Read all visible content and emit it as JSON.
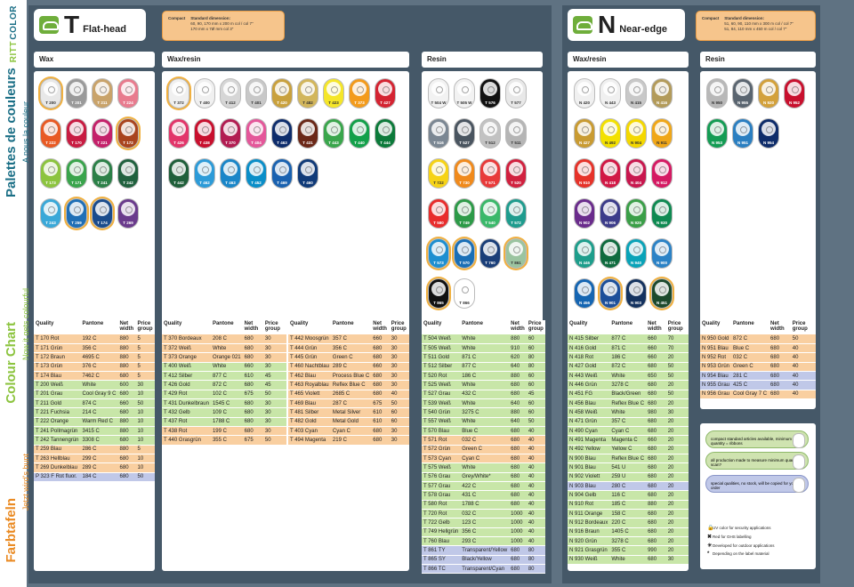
{
  "sidebar": {
    "logo1": "COLOR",
    "logo2": "RITT",
    "de": "Farbtafeln",
    "de_sub": "Jetzt wird's bunt",
    "en": "Colour Chart",
    "en_sub": "Now it gets colourful",
    "fr": "Palettes de couleurs",
    "fr_sub": "A nous la couleur"
  },
  "t": {
    "letter": "T",
    "title": "Flat-head",
    "note_label": "Compact",
    "note_text1": "Standard dimension:",
    "note_text2": "60, 90, 170 mm x 200 m col / col 7\"",
    "note_text3": "170 mm x 7Ø mm col 3\""
  },
  "n": {
    "letter": "N",
    "title": "Near-edge",
    "note_label": "Compact",
    "note_text1": "Standard dimension:",
    "note_text2": "51, 60, 90, 110 mm x 300 m col / col 7\"",
    "note_text3": "51, 84, 110 mm x 450 m col / col 7\""
  },
  "sections": {
    "wax": "Wax",
    "waxresin": "Wax/resin",
    "resin": "Resin",
    "n_waxresin": "Wax/resin",
    "n_resin": "Resin"
  },
  "headers": [
    "Quality",
    "Pantone",
    "Net width",
    "Price group"
  ],
  "colors": {
    "green": "#c8e6a8",
    "orange": "#f9cfa0",
    "blue": "#c0c8e8",
    "white": "#ffffff"
  },
  "rolls": {
    "wax": [
      [
        "T 200",
        "#e8e8e8",
        1
      ],
      [
        "T 201",
        "#9a9a9a",
        0
      ],
      [
        "T 211",
        "#c9a36a",
        0
      ],
      [
        "T 224",
        "#e87b8e",
        0
      ],
      [
        "T 222",
        "#e85a24",
        0
      ],
      [
        "T 170",
        "#c81c42",
        0
      ],
      [
        "T 221",
        "#c4216a",
        0
      ],
      [
        "T 172",
        "#a9441e",
        1
      ],
      [
        "T 173",
        "#8cc43f",
        0
      ],
      [
        "T 171",
        "#3aa44c",
        0
      ],
      [
        "T 241",
        "#2c8048",
        0
      ],
      [
        "T 242",
        "#20613e",
        0
      ],
      [
        "T 243",
        "#3aa8d8",
        0
      ],
      [
        "T 259",
        "#1f6fb6",
        1
      ],
      [
        "T 174",
        "#1b4c8c",
        1
      ],
      [
        "T 269",
        "#6a3b8c",
        0
      ]
    ],
    "waxresin": [
      [
        "T 372",
        "#f0f0f0",
        1
      ],
      [
        "T 400",
        "#f0f0f0",
        0
      ],
      [
        "T 412",
        "#d6d6d6",
        0
      ],
      [
        "T 401",
        "#c8c8c8",
        0
      ],
      [
        "T 420",
        "#c9a13d",
        0
      ],
      [
        "T 482",
        "#d2b65c",
        0
      ],
      [
        "T 423",
        "#f5e629",
        0
      ],
      [
        "T 373",
        "#f39b1c",
        0
      ],
      [
        "T 427",
        "#d42432",
        0
      ],
      [
        "T 426",
        "#e2356a",
        0
      ],
      [
        "T 438",
        "#c8102e",
        0
      ],
      [
        "T 370",
        "#b21d52",
        0
      ],
      [
        "T 404",
        "#e4579a",
        0
      ],
      [
        "T 463",
        "#0e2d6c",
        0
      ],
      [
        "T 431",
        "#6b2818",
        0
      ],
      [
        "T 443",
        "#3aa64c",
        0
      ],
      [
        "T 440",
        "#13a04a",
        0
      ],
      [
        "T 444",
        "#0c7a3a",
        0
      ],
      [
        "T 442",
        "#1f5f3a",
        0
      ],
      [
        "T 462",
        "#2d9bd8",
        0
      ],
      [
        "T 463",
        "#1a86c8",
        0
      ],
      [
        "T 452",
        "#0a8ec8",
        0
      ],
      [
        "T 469",
        "#1a62b0",
        0
      ],
      [
        "T 460",
        "#103a78",
        0
      ]
    ],
    "resin": [
      [
        "T 504 W",
        "#f2f2f2",
        0
      ],
      [
        "T 505 W",
        "#f2f2f2",
        0
      ],
      [
        "T 576",
        "#111111",
        0
      ],
      [
        "T 577",
        "#e8e8e8",
        0
      ],
      [
        "T 516",
        "#7b8793",
        0
      ],
      [
        "T 527",
        "#4a5560",
        0
      ],
      [
        "T 512",
        "#c2c2c2",
        0
      ],
      [
        "T 511",
        "#b5b5b5",
        0
      ],
      [
        "T 722",
        "#f6d316",
        0
      ],
      [
        "T 730",
        "#f08a1c",
        0
      ],
      [
        "T 571",
        "#e83a3a",
        0
      ],
      [
        "T 520",
        "#d1213f",
        0
      ],
      [
        "T 580",
        "#e82d2d",
        0
      ],
      [
        "T 749",
        "#2d9a48",
        0
      ],
      [
        "T 540",
        "#3ab86a",
        0
      ],
      [
        "T 572",
        "#1f9c8e",
        0
      ],
      [
        "T 573",
        "#1e8fd0",
        1
      ],
      [
        "T 570",
        "#1a6fb6",
        1
      ],
      [
        "T 760",
        "#1a3e78",
        0
      ],
      [
        "T 861",
        "#9bc4a0",
        1
      ],
      [
        "T 865",
        "#111111",
        1
      ],
      [
        "T 866",
        "#ffffff",
        0
      ]
    ],
    "n_waxresin": [
      [
        "N 420",
        "#f0f0f0",
        0
      ],
      [
        "N 443",
        "#f0f0f0",
        0
      ],
      [
        "N 415",
        "#c8c8c8",
        0
      ],
      [
        "N 416",
        "#b39b5a",
        0
      ],
      [
        "N 427",
        "#c99b32",
        0
      ],
      [
        "N 492",
        "#f3e100",
        0
      ],
      [
        "N 904",
        "#f4d800",
        0
      ],
      [
        "N 911",
        "#f0a718",
        0
      ],
      [
        "N 910",
        "#e6332a",
        0
      ],
      [
        "N 418",
        "#d11845",
        0
      ],
      [
        "N 404",
        "#c8174e",
        0
      ],
      [
        "N 912",
        "#d51a63",
        0
      ],
      [
        "N 902",
        "#6a2c8c",
        0
      ],
      [
        "N 906",
        "#3c3c8a",
        0
      ],
      [
        "N 920",
        "#3b9f48",
        0
      ],
      [
        "N 930",
        "#0f8a52",
        0
      ],
      [
        "N 446",
        "#1e9e8c",
        0
      ],
      [
        "N 471",
        "#0f6b3e",
        0
      ],
      [
        "N 940",
        "#0aa3b8",
        0
      ],
      [
        "N 900",
        "#2b82c6",
        0
      ],
      [
        "N 456",
        "#1565b2",
        0
      ],
      [
        "N 901",
        "#1d4f9a",
        1
      ],
      [
        "N 903",
        "#14325f",
        0
      ],
      [
        "N 451",
        "#1c4a2c",
        1
      ]
    ],
    "n_resin": [
      [
        "N 950",
        "#b8b8b8",
        0
      ],
      [
        "N 955",
        "#5a6570",
        0
      ],
      [
        "N 920",
        "#d3a13b",
        0
      ],
      [
        "N 952",
        "#c8102e",
        0
      ],
      [
        "N 953",
        "#149c54",
        0
      ],
      [
        "N 951",
        "#2b7fc1",
        0
      ],
      [
        "N 954",
        "#0e2c6a",
        0
      ]
    ]
  },
  "tables": {
    "wax": [
      [
        "T 170 Rot",
        "192 C",
        "880",
        "5",
        "orange"
      ],
      [
        "T 171 Grün",
        "356 C",
        "880",
        "5",
        "orange"
      ],
      [
        "T 172 Braun",
        "4695 C",
        "880",
        "5",
        "orange"
      ],
      [
        "T 173 Grün",
        "376 C",
        "880",
        "5",
        "orange"
      ],
      [
        "T 174 Blau",
        "7462 C",
        "680",
        "5",
        "orange"
      ],
      [
        "T 200 Weiß",
        "White",
        "600",
        "30",
        "green"
      ],
      [
        "T 201 Grau",
        "Cool Gray 9 C",
        "680",
        "10",
        "green"
      ],
      [
        "T 211 Gold",
        "874 C",
        "660",
        "50",
        "green"
      ],
      [
        "T 221 Fuchsia",
        "214 C",
        "680",
        "10",
        "green"
      ],
      [
        "T 222 Orange",
        "Warm Red C",
        "880",
        "10",
        "green"
      ],
      [
        "T 241 Pollmagrün",
        "3415 C",
        "880",
        "10",
        "green"
      ],
      [
        "T 242 Tannengrün",
        "3308 C",
        "680",
        "10",
        "green"
      ],
      [
        "T 259 Blau",
        "286 C",
        "880",
        "5",
        "orange"
      ],
      [
        "T 263 Hellblau",
        "299 C",
        "680",
        "10",
        "orange"
      ],
      [
        "T 269 Dunkelblau",
        "289 C",
        "680",
        "10",
        "orange"
      ],
      [
        "P 323 F Rot fluor.",
        "184 C",
        "680",
        "50",
        "blue"
      ]
    ],
    "wr1": [
      [
        "T 370 Bordeaux",
        "208 C",
        "680",
        "30",
        "orange"
      ],
      [
        "T 372 Weiß",
        "White",
        "680",
        "30",
        "orange"
      ],
      [
        "T 373 Orange",
        "Orange 021",
        "680",
        "30",
        "orange"
      ],
      [
        "T 400 Weiß",
        "White",
        "660",
        "30",
        "green"
      ],
      [
        "T 412 Silber",
        "877 C",
        "610",
        "45",
        "green"
      ],
      [
        "T 426 Gold",
        "872 C",
        "680",
        "45",
        "green"
      ],
      [
        "T 429 Rot",
        "102 C",
        "675",
        "50",
        "green"
      ],
      [
        "T 431 Dunkelbraun",
        "1545 C",
        "680",
        "30",
        "green"
      ],
      [
        "T 432 Gelb",
        "109 C",
        "680",
        "30",
        "green"
      ],
      [
        "T 437 Rot",
        "1788 C",
        "680",
        "30",
        "green"
      ],
      [
        "T 438 Rot",
        "199 C",
        "680",
        "30",
        "orange"
      ],
      [
        "T 440 Grasgrün",
        "355 C",
        "675",
        "50",
        "orange"
      ]
    ],
    "wr2": [
      [
        "T 442 Moosgrün",
        "357 C",
        "660",
        "30",
        "orange"
      ],
      [
        "T 444 Grün",
        "356 C",
        "680",
        "30",
        "orange"
      ],
      [
        "T 445 Grün",
        "Green C",
        "680",
        "30",
        "orange"
      ],
      [
        "T 460 Nachtblau",
        "289 C",
        "660",
        "30",
        "orange"
      ],
      [
        "T 462 Blau",
        "Process Blue C",
        "680",
        "30",
        "orange"
      ],
      [
        "T 463 Royalblau",
        "Reflex Blue C",
        "680",
        "30",
        "orange"
      ],
      [
        "T 465 Violett",
        "2685 C",
        "680",
        "40",
        "orange"
      ],
      [
        "T 469 Blau",
        "287 C",
        "675",
        "50",
        "orange"
      ],
      [
        "T 481 Silber",
        "Metal Silver",
        "610",
        "60",
        "orange"
      ],
      [
        "T 482 Gold",
        "Metal Gold",
        "610",
        "60",
        "orange"
      ],
      [
        "T 403 Cyan",
        "Cyan C",
        "680",
        "30",
        "orange"
      ],
      [
        "T 494 Magenta",
        "219 C",
        "680",
        "30",
        "orange"
      ]
    ],
    "resin": [
      [
        "T 504 Weiß",
        "White",
        "880",
        "60",
        "green"
      ],
      [
        "T 505 Weiß",
        "White",
        "910",
        "60",
        "green"
      ],
      [
        "T 511 Gold",
        "871 C",
        "620",
        "80",
        "green"
      ],
      [
        "T 512 Silber",
        "877 C",
        "640",
        "80",
        "green"
      ],
      [
        "T 520 Rot",
        "186 C",
        "880",
        "60",
        "green"
      ],
      [
        "T 525 Weiß",
        "White",
        "680",
        "60",
        "green"
      ],
      [
        "T 527 Grau",
        "432 C",
        "680",
        "45",
        "green"
      ],
      [
        "T 539 Weiß",
        "White",
        "640",
        "60",
        "green"
      ],
      [
        "T 540 Grün",
        "3275 C",
        "880",
        "60",
        "green"
      ],
      [
        "T 557 Weiß",
        "White",
        "640",
        "50",
        "green"
      ],
      [
        "T 570 Blau",
        "Blue C",
        "680",
        "40",
        "green"
      ],
      [
        "T 571 Rot",
        "032 C",
        "680",
        "40",
        "orange"
      ],
      [
        "T 572 Grün",
        "Green C",
        "680",
        "40",
        "orange"
      ],
      [
        "T 573 Cyan",
        "Cyan C",
        "680",
        "40",
        "orange"
      ],
      [
        "T 575 Weiß",
        "White",
        "680",
        "40",
        "green"
      ],
      [
        "T 576 Grau",
        "Grey/White*",
        "680",
        "40",
        "green"
      ],
      [
        "T 577 Grau",
        "422 C",
        "680",
        "40",
        "green"
      ],
      [
        "T 578 Grau",
        "431 C",
        "680",
        "40",
        "green"
      ],
      [
        "T 580 Rot",
        "1788 C",
        "680",
        "40",
        "green"
      ],
      [
        "T 720 Rot",
        "032 C",
        "1000",
        "40",
        "green"
      ],
      [
        "T 722 Gelb",
        "123 C",
        "1000",
        "40",
        "green"
      ],
      [
        "T 749 Hellgrün",
        "356 C",
        "1000",
        "40",
        "green"
      ],
      [
        "T 760 Blau",
        "293 C",
        "1000",
        "40",
        "green"
      ],
      [
        "T 861 TY",
        "Transparent/Yellow",
        "680",
        "80",
        "blue"
      ],
      [
        "T 865 SY",
        "Black/Yellow",
        "680",
        "80",
        "blue"
      ],
      [
        "T 866 TC",
        "Transparent/Cyan",
        "680",
        "80",
        "blue"
      ]
    ],
    "n_wr": [
      [
        "N 415 Silber",
        "877 C",
        "660",
        "70",
        "green"
      ],
      [
        "N 416 Gold",
        "871 C",
        "660",
        "70",
        "green"
      ],
      [
        "N 418 Rot",
        "186 C",
        "660",
        "20",
        "green"
      ],
      [
        "N 427 Gold",
        "872 C",
        "680",
        "50",
        "green"
      ],
      [
        "N 443 Weiß",
        "White",
        "650",
        "50",
        "green"
      ],
      [
        "N 446 Grün",
        "3278 C",
        "680",
        "20",
        "green"
      ],
      [
        "N 451 FG",
        "Black/Green",
        "680",
        "50",
        "green"
      ],
      [
        "N 456 Blau",
        "Reflex Blue C",
        "680",
        "20",
        "green"
      ],
      [
        "N 458 Weiß",
        "White",
        "980",
        "30",
        "green"
      ],
      [
        "N 471 Grün",
        "357 C",
        "680",
        "20",
        "green"
      ],
      [
        "N 490 Cyan",
        "Cyan C",
        "680",
        "20",
        "green"
      ],
      [
        "N 491 Magenta",
        "Magenta C",
        "660",
        "20",
        "green"
      ],
      [
        "N 492 Yellow",
        "Yellow C",
        "680",
        "20",
        "green"
      ],
      [
        "N 900 Blau",
        "Reflex Blue C",
        "680",
        "20",
        "green"
      ],
      [
        "N 901 Blau",
        "541 U",
        "680",
        "20",
        "green"
      ],
      [
        "N 902 Violett",
        "259 U",
        "680",
        "20",
        "green"
      ],
      [
        "N 903 Blau",
        "280 C",
        "680",
        "20",
        "blue"
      ],
      [
        "N 904 Gelb",
        "116 C",
        "680",
        "20",
        "green"
      ],
      [
        "N 910 Rot",
        "185 C",
        "880",
        "20",
        "green"
      ],
      [
        "N 911 Orange",
        "158 C",
        "680",
        "20",
        "green"
      ],
      [
        "N 912 Bordeaux",
        "220 C",
        "680",
        "20",
        "green"
      ],
      [
        "N 916 Braun",
        "1405 C",
        "680",
        "20",
        "green"
      ],
      [
        "N 920 Grün",
        "3278 C",
        "680",
        "20",
        "green"
      ],
      [
        "N 921 Grasgrün",
        "355 C",
        "990",
        "20",
        "green"
      ],
      [
        "N 930 Weiß",
        "White",
        "680",
        "30",
        "green"
      ]
    ],
    "n_r": [
      [
        "N 950 Gold",
        "872 C",
        "680",
        "50",
        "orange"
      ],
      [
        "N 951 Blau",
        "Blue C",
        "680",
        "40",
        "orange"
      ],
      [
        "N 952 Rot",
        "032 C",
        "680",
        "40",
        "orange"
      ],
      [
        "N 953 Grün",
        "Green C",
        "680",
        "40",
        "orange"
      ],
      [
        "N 954 Blau",
        "281 C",
        "680",
        "40",
        "blue"
      ],
      [
        "N 955 Grau",
        "425 C",
        "680",
        "40",
        "blue"
      ],
      [
        "N 956 Grau",
        "Cool Gray 7 C",
        "680",
        "40",
        "orange"
      ]
    ]
  },
  "legend": {
    "box1": "compact standard articles available, minimum quantity = ribbons",
    "box2": "all production made to measure minimum quantity scan?",
    "box3": "special qualities, no stock, will be copied for your order",
    "i1": "UV color for security applications",
    "i2": "Red for GHS labelling",
    "i3": "Developed for outdoor applications",
    "i4": "Depending on the label material"
  }
}
